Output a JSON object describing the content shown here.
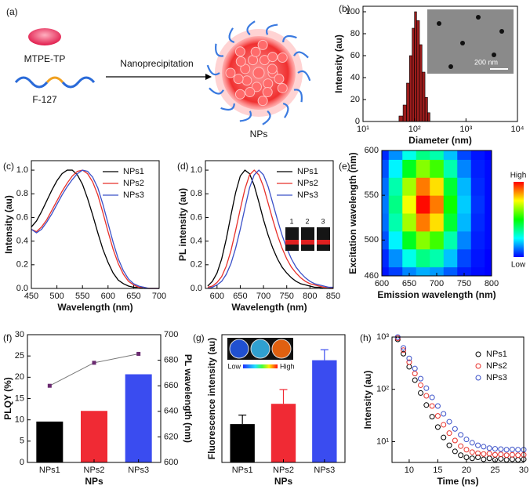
{
  "diagram": {
    "panel": "(a)",
    "molecule": "MTPE-TP",
    "polymer": "F-127",
    "process": "Nanoprecipitation",
    "product": "NPs"
  },
  "chart_data": [
    {
      "type": "histogram",
      "panel": "(b)",
      "xlabel": "Diameter (nm)",
      "ylabel": "Intensity (au)",
      "xlog": true,
      "color": "#9b1c1c",
      "bins": [
        50,
        60,
        70,
        80,
        90,
        100,
        110,
        125,
        140,
        160,
        180,
        200
      ],
      "values": [
        5,
        15,
        35,
        60,
        85,
        100,
        92,
        70,
        45,
        22,
        8
      ],
      "xlim": [
        10,
        10000
      ],
      "xticks": [
        {
          "value": 10,
          "label": "10¹"
        },
        {
          "value": 100,
          "label": "10²"
        },
        {
          "value": 1000,
          "label": "10³"
        },
        {
          "value": 10000,
          "label": "10⁴"
        }
      ],
      "ylim": [
        0,
        105
      ],
      "yticks": [
        0,
        20,
        40,
        60,
        80,
        100
      ],
      "inset_label": "200 nm"
    },
    {
      "type": "line",
      "panel": "(c)",
      "xlabel": "Wavelength (nm)",
      "ylabel": "Intensity (au)",
      "x": [
        450,
        460,
        470,
        480,
        490,
        500,
        510,
        520,
        530,
        540,
        550,
        560,
        570,
        580,
        590,
        600,
        610,
        620,
        630,
        640,
        650,
        660,
        670,
        680,
        690,
        700
      ],
      "series": [
        {
          "name": "NPs1",
          "color": "#000000",
          "values": [
            0.52,
            0.57,
            0.65,
            0.74,
            0.83,
            0.91,
            0.97,
            1.0,
            1.0,
            0.96,
            0.88,
            0.76,
            0.62,
            0.47,
            0.33,
            0.22,
            0.13,
            0.07,
            0.04,
            0.02,
            0.01,
            0.01,
            0,
            0,
            0,
            0
          ]
        },
        {
          "name": "NPs2",
          "color": "#e8302a",
          "values": [
            0.5,
            0.48,
            0.52,
            0.58,
            0.66,
            0.74,
            0.82,
            0.89,
            0.95,
            0.99,
            1.0,
            0.97,
            0.9,
            0.79,
            0.64,
            0.48,
            0.33,
            0.21,
            0.12,
            0.06,
            0.03,
            0.01,
            0.01,
            0,
            0,
            0
          ]
        },
        {
          "name": "NPs3",
          "color": "#3a50c8",
          "values": [
            0.5,
            0.47,
            0.5,
            0.56,
            0.63,
            0.71,
            0.79,
            0.86,
            0.92,
            0.97,
            1.0,
            0.99,
            0.94,
            0.85,
            0.71,
            0.55,
            0.39,
            0.25,
            0.15,
            0.08,
            0.04,
            0.02,
            0.01,
            0,
            0,
            0
          ]
        }
      ],
      "xlim": [
        450,
        700
      ],
      "xticks": [
        450,
        500,
        550,
        600,
        650,
        700
      ],
      "ylim": [
        0,
        1.08
      ],
      "yticks": [
        {
          "value": 0,
          "label": "0.0"
        },
        0.2,
        0.4,
        0.6,
        0.8,
        {
          "value": 1,
          "label": "1.0"
        }
      ]
    },
    {
      "type": "line",
      "panel": "(d)",
      "xlabel": "Wavelength (nm)",
      "ylabel": "PL intensity (au)",
      "x": [
        580,
        590,
        600,
        610,
        620,
        630,
        640,
        650,
        660,
        670,
        680,
        690,
        700,
        710,
        720,
        730,
        740,
        750,
        760,
        770,
        780,
        790,
        800,
        810,
        820,
        830,
        840,
        850
      ],
      "series": [
        {
          "name": "NPs1",
          "color": "#000000",
          "values": [
            0.02,
            0.06,
            0.13,
            0.25,
            0.42,
            0.62,
            0.81,
            0.95,
            1.0,
            0.97,
            0.87,
            0.73,
            0.58,
            0.45,
            0.34,
            0.25,
            0.18,
            0.13,
            0.09,
            0.06,
            0.04,
            0.03,
            0.02,
            0.01,
            0.01,
            0,
            0,
            0
          ]
        },
        {
          "name": "NPs2",
          "color": "#e8302a",
          "values": [
            0.01,
            0.02,
            0.05,
            0.1,
            0.19,
            0.32,
            0.49,
            0.67,
            0.84,
            0.96,
            1.0,
            0.96,
            0.86,
            0.72,
            0.58,
            0.45,
            0.34,
            0.25,
            0.18,
            0.13,
            0.09,
            0.06,
            0.04,
            0.03,
            0.02,
            0.01,
            0.01,
            0
          ]
        },
        {
          "name": "NPs3",
          "color": "#3a50c8",
          "values": [
            0,
            0.01,
            0.03,
            0.06,
            0.12,
            0.21,
            0.34,
            0.5,
            0.68,
            0.85,
            0.96,
            1.0,
            0.96,
            0.86,
            0.72,
            0.58,
            0.45,
            0.34,
            0.25,
            0.18,
            0.13,
            0.09,
            0.06,
            0.04,
            0.03,
            0.02,
            0.01,
            0.01
          ]
        }
      ],
      "xlim": [
        575,
        850
      ],
      "xticks": [
        600,
        650,
        700,
        750,
        800,
        850
      ],
      "ylim": [
        0,
        1.08
      ],
      "yticks": [
        {
          "value": 0,
          "label": "0.0"
        },
        0.2,
        0.4,
        0.6,
        0.8,
        {
          "value": 1,
          "label": "1.0"
        }
      ],
      "inset_labels": [
        "1",
        "2",
        "3"
      ]
    },
    {
      "type": "heatmap",
      "panel": "(e)",
      "xlabel": "Emission wavelength (nm)",
      "ylabel": "Excitation wavelength (nm)",
      "x": [
        600,
        625,
        650,
        675,
        700,
        725,
        750,
        775,
        800
      ],
      "y": [
        460,
        480,
        500,
        520,
        540,
        560,
        580,
        600
      ],
      "z": [
        [
          0.02,
          0.06,
          0.13,
          0.17,
          0.15,
          0.09,
          0.03,
          0.01,
          0
        ],
        [
          0.04,
          0.14,
          0.27,
          0.37,
          0.33,
          0.19,
          0.07,
          0.02,
          0
        ],
        [
          0.08,
          0.24,
          0.47,
          0.63,
          0.56,
          0.33,
          0.13,
          0.03,
          0.01
        ],
        [
          0.11,
          0.33,
          0.66,
          0.88,
          0.78,
          0.45,
          0.18,
          0.04,
          0.01
        ],
        [
          0.12,
          0.37,
          0.74,
          0.99,
          0.88,
          0.51,
          0.2,
          0.05,
          0.01
        ],
        [
          0.11,
          0.33,
          0.66,
          0.88,
          0.78,
          0.45,
          0.18,
          0.04,
          0.01
        ],
        [
          0.08,
          0.24,
          0.47,
          0.63,
          0.56,
          0.33,
          0.13,
          0.03,
          0.01
        ],
        [
          0.04,
          0.14,
          0.27,
          0.37,
          0.33,
          0.19,
          0.07,
          0.02,
          0
        ]
      ],
      "zlim": [
        0,
        1
      ],
      "colorbar_labels": [
        "High",
        "Low"
      ],
      "xlim": [
        600,
        800
      ],
      "xticks": [
        600,
        650,
        700,
        750,
        800
      ],
      "ylim": [
        460,
        600
      ],
      "yticks": [
        460,
        500,
        550,
        600
      ]
    },
    {
      "type": "bar",
      "panel": "(f)",
      "xlabel": "NPs",
      "ylabel": "PLQY (%)",
      "y2label": "PL wavelength (nm)",
      "categories": [
        "NPs1",
        "NPs2",
        "NPs3"
      ],
      "series": [
        {
          "values": [
            9.6,
            12.1,
            20.7
          ],
          "colors": [
            "#000000",
            "#f02a34",
            "#3a4cf0"
          ]
        },
        {
          "values": [
            660,
            678,
            685
          ],
          "axis": "y2",
          "color": "#6a2a70"
        }
      ],
      "ylim": [
        0,
        30
      ],
      "yticks": [
        0,
        5,
        10,
        15,
        20,
        25,
        30
      ],
      "y2lim": [
        600,
        700
      ],
      "y2ticks": [
        600,
        620,
        640,
        660,
        680,
        700
      ]
    },
    {
      "type": "bar",
      "panel": "(g)",
      "xlabel": "NPs",
      "ylabel": "Fluorescence intensity (au)",
      "categories": [
        "NPs1",
        "NPs2",
        "NPs3"
      ],
      "series": [
        {
          "values": [
            51,
            78,
            136
          ],
          "errors": [
            12,
            19,
            14
          ],
          "colors": [
            "#000000",
            "#f02a34",
            "#3a4cf0"
          ]
        }
      ],
      "ylim": [
        0,
        170
      ],
      "inset_labels": [
        "Low",
        "High"
      ]
    },
    {
      "type": "scatter",
      "panel": "(h)",
      "xlabel": "Time (ns)",
      "ylabel": "Intensity (au)",
      "ylog": true,
      "x": [
        8,
        9,
        10,
        11,
        12,
        13,
        14,
        15,
        16,
        17,
        18,
        19,
        20,
        21,
        22,
        23,
        24,
        25,
        26,
        27,
        28,
        29,
        30
      ],
      "series": [
        {
          "name": "NPs1",
          "color": "#000000",
          "values": [
            900,
            480,
            270,
            150,
            85,
            50,
            30,
            19,
            12,
            8.5,
            6.5,
            5.5,
            5,
            4.8,
            5,
            4.6,
            4.8,
            4.5,
            4.7,
            4.5,
            4.6,
            4.5,
            4.6
          ]
        },
        {
          "name": "NPs2",
          "color": "#e8302a",
          "values": [
            950,
            560,
            330,
            200,
            120,
            75,
            48,
            31,
            21,
            14.5,
            10.5,
            8.2,
            7,
            6.3,
            6,
            5.8,
            5.9,
            5.6,
            5.7,
            5.5,
            5.6,
            5.5,
            5.6
          ]
        },
        {
          "name": "NPs3",
          "color": "#3a50c8",
          "values": [
            1000,
            620,
            390,
            250,
            160,
            105,
            70,
            48,
            34,
            24,
            17.5,
            13.5,
            11,
            9.5,
            8.5,
            8,
            7.5,
            7.3,
            7.2,
            7,
            7.1,
            7,
            7
          ]
        }
      ],
      "xlim": [
        7,
        30
      ],
      "xticks": [
        10,
        15,
        20,
        25,
        30
      ],
      "ylim": [
        4,
        1000
      ],
      "yticks": [
        {
          "value": 10,
          "label": "10¹"
        },
        {
          "value": 100,
          "label": "10²"
        },
        {
          "value": 1000,
          "label": "10³"
        }
      ]
    }
  ]
}
